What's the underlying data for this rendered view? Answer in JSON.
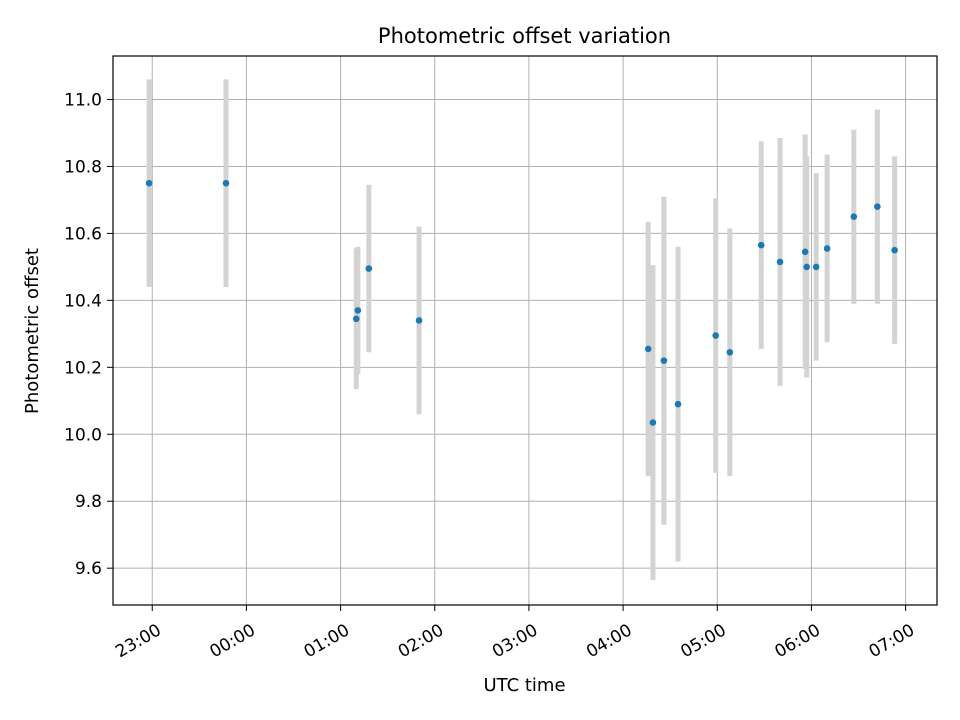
{
  "chart_data": {
    "type": "scatter",
    "title": "Photometric offset variation",
    "xlabel": "UTC time",
    "ylabel": "Photometric offset",
    "x_axis": "datetime",
    "xlim": [
      "22:35",
      "07:20"
    ],
    "ylim": [
      9.49,
      11.13
    ],
    "xticks": [
      "23:00",
      "00:00",
      "01:00",
      "02:00",
      "03:00",
      "04:00",
      "05:00",
      "06:00",
      "07:00"
    ],
    "yticks": [
      9.6,
      9.8,
      10.0,
      10.2,
      10.4,
      10.6,
      10.8,
      11.0
    ],
    "grid": true,
    "marker_color": "#1f77b4",
    "errorbar_color": "#d3d3d3",
    "series": [
      {
        "points": [
          {
            "time": "22:58",
            "y": 10.75,
            "err": 0.31
          },
          {
            "time": "23:47",
            "y": 10.75,
            "err": 0.31
          },
          {
            "time": "01:10",
            "y": 10.345,
            "err": 0.21
          },
          {
            "time": "01:11",
            "y": 10.37,
            "err": 0.19
          },
          {
            "time": "01:18",
            "y": 10.495,
            "err": 0.25
          },
          {
            "time": "01:50",
            "y": 10.34,
            "err": 0.28
          },
          {
            "time": "04:16",
            "y": 10.255,
            "err": 0.38
          },
          {
            "time": "04:19",
            "y": 10.035,
            "err": 0.47
          },
          {
            "time": "04:26",
            "y": 10.22,
            "err": 0.49
          },
          {
            "time": "04:35",
            "y": 10.09,
            "err": 0.47
          },
          {
            "time": "04:59",
            "y": 10.295,
            "err": 0.41
          },
          {
            "time": "05:08",
            "y": 10.245,
            "err": 0.37
          },
          {
            "time": "05:28",
            "y": 10.565,
            "err": 0.31
          },
          {
            "time": "05:40",
            "y": 10.515,
            "err": 0.37
          },
          {
            "time": "05:56",
            "y": 10.545,
            "err": 0.35
          },
          {
            "time": "05:57",
            "y": 10.5,
            "err": 0.33
          },
          {
            "time": "06:03",
            "y": 10.5,
            "err": 0.28
          },
          {
            "time": "06:10",
            "y": 10.555,
            "err": 0.28
          },
          {
            "time": "06:27",
            "y": 10.65,
            "err": 0.26
          },
          {
            "time": "06:42",
            "y": 10.68,
            "err": 0.29
          },
          {
            "time": "06:53",
            "y": 10.55,
            "err": 0.28
          }
        ]
      }
    ]
  }
}
